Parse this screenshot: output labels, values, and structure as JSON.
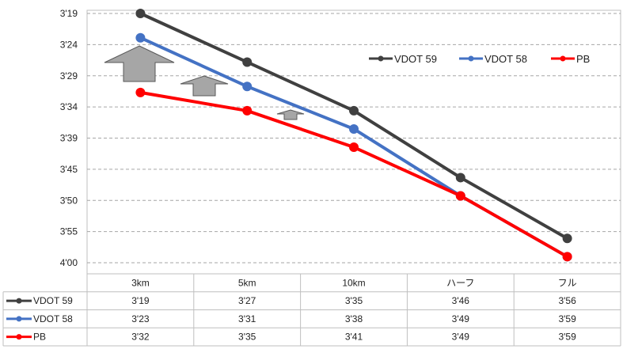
{
  "chart_data": {
    "type": "line",
    "categories": [
      "3km",
      "5km",
      "10km",
      "ハーフ",
      "フル"
    ],
    "y_ticks": [
      "3'19",
      "3'24",
      "3'29",
      "3'34",
      "3'39",
      "3'45",
      "3'50",
      "3'55",
      "4'00"
    ],
    "ylim_seconds": [
      199,
      240
    ],
    "y_inverted": true,
    "grid": true,
    "legend_position": "top-right",
    "series": [
      {
        "name": "VDOT 59",
        "color": "#404040",
        "values_seconds": [
          199,
          207,
          215,
          226,
          236
        ],
        "labels": [
          "3'19",
          "3'27",
          "3'35",
          "3'46",
          "3'56"
        ]
      },
      {
        "name": "VDOT 58",
        "color": "#4472C4",
        "values_seconds": [
          203,
          211,
          218,
          229,
          239
        ],
        "labels": [
          "3'23",
          "3'31",
          "3'38",
          "3'49",
          "3'59"
        ]
      },
      {
        "name": "PB",
        "color": "#FF0000",
        "values_seconds": [
          212,
          215,
          221,
          229,
          239
        ],
        "labels": [
          "3'32",
          "3'35",
          "3'41",
          "3'49",
          "3'59"
        ]
      }
    ],
    "annotations": [
      {
        "type": "arrow-up",
        "category": "3km",
        "color": "#a6a6a6"
      },
      {
        "type": "arrow-up",
        "category": "5km",
        "color": "#a6a6a6"
      },
      {
        "type": "arrow-up",
        "category": "10km",
        "color": "#a6a6a6"
      }
    ]
  }
}
